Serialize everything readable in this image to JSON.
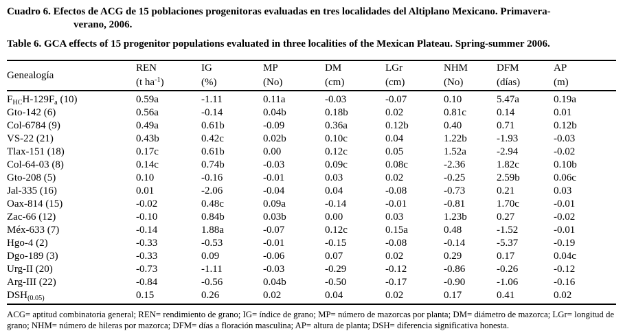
{
  "captions": {
    "es_line1": "Cuadro 6. Efectos de ACG de 15 poblaciones progenitoras evaluadas en tres localidades del Altiplano Mexicano. Primavera-",
    "es_line2": "verano, 2006.",
    "en": "Table 6. GCA effects of 15 progenitor populations evaluated in three localities of the Mexican Plateau. Spring-summer 2006."
  },
  "table": {
    "columns": [
      {
        "key": "genealogia",
        "label": "Genealogía",
        "unit": ""
      },
      {
        "key": "ren",
        "label": "REN",
        "unit": "(t ha^-1^)"
      },
      {
        "key": "ig",
        "label": "IG",
        "unit": "(%)"
      },
      {
        "key": "mp",
        "label": "MP",
        "unit": "(No)"
      },
      {
        "key": "dm",
        "label": "DM",
        "unit": "(cm)"
      },
      {
        "key": "lgr",
        "label": "LGr",
        "unit": "(cm)"
      },
      {
        "key": "nhm",
        "label": "NHM",
        "unit": "(No)"
      },
      {
        "key": "dfm",
        "label": "DFM",
        "unit": "(días)"
      },
      {
        "key": "ap",
        "label": "AP",
        "unit": "(m)"
      }
    ],
    "rows": [
      {
        "name": "F~HC~H-129F~a~ (10)",
        "values": [
          "0.59a",
          "-1.11",
          "0.11a",
          "-0.03",
          "-0.07",
          "0.10",
          "5.47a",
          "0.19a"
        ]
      },
      {
        "name": "Gto-142 (6)",
        "values": [
          "0.56a",
          "-0.14",
          "0.04b",
          "0.18b",
          "0.02",
          "0.81c",
          "0.14",
          "0.01"
        ]
      },
      {
        "name": "Col-6784 (9)",
        "values": [
          "0.49a",
          "0.61b",
          "-0.09",
          "0.36a",
          "0.12b",
          "0.40",
          "0.71",
          "0.12b"
        ]
      },
      {
        "name": "VS-22 (21)",
        "values": [
          "0.43b",
          "0.42c",
          "0.02b",
          "0.10c",
          "0.04",
          "1.22b",
          "-1.93",
          "-0.03"
        ]
      },
      {
        "name": "Tlax-151 (18)",
        "values": [
          "0.17c",
          "0.61b",
          "0.00",
          "0.12c",
          "0.05",
          "1.52a",
          "-2.94",
          "-0.02"
        ]
      },
      {
        "name": "Col-64-03 (8)",
        "values": [
          "0.14c",
          "0.74b",
          "-0.03",
          "0.09c",
          "0.08c",
          "-2.36",
          "1.82c",
          "0.10b"
        ]
      },
      {
        "name": "Gto-208 (5)",
        "values": [
          "0.10",
          "-0.16",
          "-0.01",
          "0.03",
          "0.02",
          "-0.25",
          "2.59b",
          "0.06c"
        ]
      },
      {
        "name": "Jal-335 (16)",
        "values": [
          "0.01",
          "-2.06",
          "-0.04",
          "0.04",
          "-0.08",
          "-0.73",
          "0.21",
          "0.03"
        ]
      },
      {
        "name": "Oax-814 (15)",
        "values": [
          "-0.02",
          "0.48c",
          "0.09a",
          "-0.14",
          "-0.01",
          "-0.81",
          "1.70c",
          "-0.01"
        ]
      },
      {
        "name": "Zac-66 (12)",
        "values": [
          "-0.10",
          "0.84b",
          "0.03b",
          "0.00",
          "0.03",
          "1.23b",
          "0.27",
          "-0.02"
        ]
      },
      {
        "name": "Méx-633 (7)",
        "values": [
          "-0.14",
          "1.88a",
          "-0.07",
          "0.12c",
          "0.15a",
          "0.48",
          "-1.52",
          "-0.01"
        ]
      },
      {
        "name": "Hgo-4 (2)",
        "values": [
          "-0.33",
          "-0.53",
          "-0.01",
          "-0.15",
          "-0.08",
          "-0.14",
          "-5.37",
          "-0.19"
        ]
      },
      {
        "name": "Dgo-189 (3)",
        "values": [
          "-0.33",
          "0.09",
          "-0.06",
          "0.07",
          "0.02",
          "0.29",
          "0.17",
          "0.04c"
        ]
      },
      {
        "name": "Urg-II (20)",
        "values": [
          "-0.73",
          "-1.11",
          "-0.03",
          "-0.29",
          "-0.12",
          "-0.86",
          "-0.26",
          "-0.12"
        ]
      },
      {
        "name": "Arg-III (22)",
        "values": [
          "-0.84",
          "-0.56",
          "0.04b",
          "-0.50",
          "-0.17",
          "-0.90",
          "-1.06",
          "-0.16"
        ]
      },
      {
        "name": "DSH~(0.05)~",
        "values": [
          "0.15",
          "0.26",
          "0.02",
          "0.04",
          "0.02",
          "0.17",
          "0.41",
          "0.02"
        ]
      }
    ]
  },
  "footnote": "ACG= aptitud combinatoria general; REN= rendimiento de grano; IG= índice de grano; MP= número de mazorcas por planta; DM= diámetro de mazorca; LGr= longitud de grano; NHM= número de hileras por mazorca; DFM= días a floración masculina; AP= altura de planta; DSH= diferencia significativa honesta."
}
